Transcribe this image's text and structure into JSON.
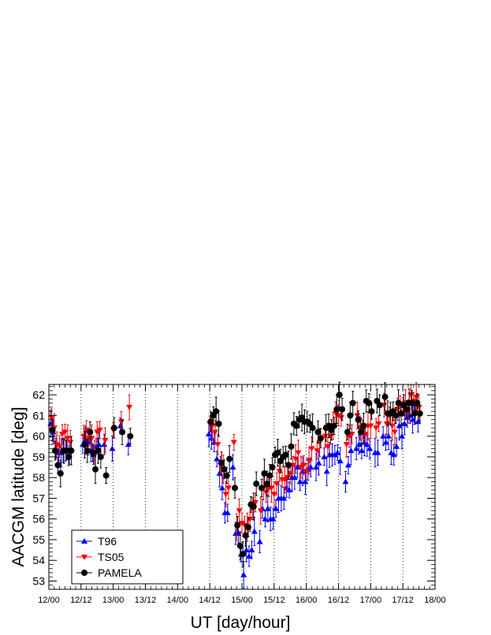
{
  "chart_data": {
    "type": "scatter",
    "xlabel": "UT [day/hour]",
    "ylabel": "AACGM latitude [deg]",
    "xlim": [
      0,
      144
    ],
    "ylim": [
      52.6,
      62.5
    ],
    "x_tick_labels": [
      "12/00",
      "12/12",
      "13/00",
      "13/12",
      "14/00",
      "14/12",
      "15/00",
      "15/12",
      "16/00",
      "16/12",
      "17/00",
      "17/12",
      "18/00"
    ],
    "x_tick_values": [
      0,
      12,
      24,
      36,
      48,
      60,
      72,
      84,
      96,
      108,
      120,
      132,
      144
    ],
    "y_tick_values": [
      53,
      54,
      55,
      56,
      57,
      58,
      59,
      60,
      61,
      62
    ],
    "grid_vertical_dotted": true,
    "legend_position": "bottom-left",
    "series": [
      {
        "name": "T96",
        "color": "#0000ff",
        "marker": "triangle-up",
        "points": [
          [
            1,
            60.6
          ],
          [
            2,
            60.2
          ],
          [
            3,
            59.4
          ],
          [
            4,
            59.2
          ],
          [
            5,
            59.2
          ],
          [
            6,
            59.3
          ],
          [
            7,
            59.4
          ],
          [
            8,
            59.1
          ],
          [
            13,
            59.6
          ],
          [
            14,
            59.8
          ],
          [
            15,
            59.7
          ],
          [
            16,
            59.3
          ],
          [
            17,
            59.1
          ],
          [
            18,
            59.5
          ],
          [
            19,
            59.6
          ],
          [
            21,
            59.6
          ],
          [
            24,
            59.4
          ],
          [
            27,
            60.5
          ],
          [
            30,
            59.6
          ],
          [
            60,
            60.1
          ],
          [
            61,
            59.9
          ],
          [
            62,
            59.7
          ],
          [
            63,
            58.9
          ],
          [
            64,
            58.2
          ],
          [
            65,
            57.5
          ],
          [
            66,
            56.3
          ],
          [
            67,
            56.3
          ],
          [
            69,
            58.5
          ],
          [
            70,
            55.3
          ],
          [
            71,
            55.3
          ],
          [
            72,
            54.3
          ],
          [
            73,
            53.3
          ],
          [
            74,
            54.5
          ],
          [
            75,
            54.2
          ],
          [
            76,
            54.5
          ],
          [
            77,
            55.4
          ],
          [
            79,
            54.9
          ],
          [
            80,
            56.5
          ],
          [
            81,
            56.0
          ],
          [
            82,
            56.5
          ],
          [
            83,
            56.0
          ],
          [
            84,
            56.0
          ],
          [
            85,
            56.5
          ],
          [
            86,
            57.0
          ],
          [
            87,
            57.0
          ],
          [
            88,
            57.0
          ],
          [
            89,
            57.5
          ],
          [
            90,
            57.4
          ],
          [
            91,
            58.0
          ],
          [
            92,
            58.0
          ],
          [
            93,
            58.5
          ],
          [
            94,
            57.8
          ],
          [
            95,
            58.3
          ],
          [
            96,
            57.8
          ],
          [
            97,
            58.4
          ],
          [
            98,
            58.5
          ],
          [
            100,
            58.5
          ],
          [
            101,
            58.7
          ],
          [
            103,
            59.0
          ],
          [
            104,
            58.3
          ],
          [
            105,
            59.1
          ],
          [
            106,
            59.1
          ],
          [
            107,
            59.1
          ],
          [
            108,
            59.2
          ],
          [
            109,
            58.8
          ],
          [
            111,
            57.8
          ],
          [
            112,
            58.6
          ],
          [
            113,
            59.3
          ],
          [
            115,
            59.4
          ],
          [
            116,
            59.6
          ],
          [
            117,
            59.3
          ],
          [
            118,
            59.7
          ],
          [
            119,
            59.6
          ],
          [
            120,
            59.4
          ],
          [
            122,
            59.2
          ],
          [
            123,
            59.2
          ],
          [
            125,
            60.0
          ],
          [
            126,
            59.7
          ],
          [
            127,
            60.0
          ],
          [
            128,
            59.2
          ],
          [
            129,
            59.1
          ],
          [
            130,
            59.5
          ],
          [
            131,
            60.5
          ],
          [
            132,
            60.0
          ],
          [
            133,
            60.6
          ],
          [
            134,
            60.9
          ],
          [
            135,
            61.0
          ],
          [
            136,
            60.8
          ],
          [
            137,
            61.2
          ],
          [
            138,
            60.7
          ]
        ]
      },
      {
        "name": "TS05",
        "color": "#ff0000",
        "marker": "triangle-down",
        "points": [
          [
            1,
            60.9
          ],
          [
            2,
            60.4
          ],
          [
            3,
            59.6
          ],
          [
            4,
            59.5
          ],
          [
            5,
            60.1
          ],
          [
            6,
            60.2
          ],
          [
            7,
            59.9
          ],
          [
            8,
            59.7
          ],
          [
            13,
            60.0
          ],
          [
            14,
            60.3
          ],
          [
            15,
            59.9
          ],
          [
            16,
            59.9
          ],
          [
            17,
            59.2
          ],
          [
            18,
            60.2
          ],
          [
            19,
            60.3
          ],
          [
            21,
            59.8
          ],
          [
            24,
            60.3
          ],
          [
            27,
            60.7
          ],
          [
            30,
            61.4
          ],
          [
            60,
            60.6
          ],
          [
            61,
            60.5
          ],
          [
            62,
            60.2
          ],
          [
            63,
            59.6
          ],
          [
            64,
            58.6
          ],
          [
            65,
            58.4
          ],
          [
            66,
            57.2
          ],
          [
            67,
            57.5
          ],
          [
            69,
            59.7
          ],
          [
            70,
            55.6
          ],
          [
            71,
            56.4
          ],
          [
            72,
            55.8
          ],
          [
            73,
            55.7
          ],
          [
            74,
            55.6
          ],
          [
            75,
            56.0
          ],
          [
            76,
            56.5
          ],
          [
            77,
            56.8
          ],
          [
            79,
            56.4
          ],
          [
            80,
            57.5
          ],
          [
            81,
            57.3
          ],
          [
            82,
            57.5
          ],
          [
            83,
            57.5
          ],
          [
            84,
            57.2
          ],
          [
            85,
            57.7
          ],
          [
            86,
            58.3
          ],
          [
            87,
            57.9
          ],
          [
            88,
            57.9
          ],
          [
            89,
            58.0
          ],
          [
            90,
            58.2
          ],
          [
            91,
            58.6
          ],
          [
            92,
            58.9
          ],
          [
            93,
            59.2
          ],
          [
            94,
            58.5
          ],
          [
            95,
            58.6
          ],
          [
            96,
            58.3
          ],
          [
            97,
            58.8
          ],
          [
            98,
            59.4
          ],
          [
            100,
            59.3
          ],
          [
            101,
            59.7
          ],
          [
            103,
            60.0
          ],
          [
            104,
            59.5
          ],
          [
            105,
            60.0
          ],
          [
            106,
            60.5
          ],
          [
            107,
            61.1
          ],
          [
            108,
            61.0
          ],
          [
            109,
            60.9
          ],
          [
            111,
            59.6
          ],
          [
            112,
            60.0
          ],
          [
            113,
            60.1
          ],
          [
            115,
            61.0
          ],
          [
            116,
            60.4
          ],
          [
            117,
            60.3
          ],
          [
            118,
            60.1
          ],
          [
            119,
            60.5
          ],
          [
            120,
            60.5
          ],
          [
            122,
            60.4
          ],
          [
            123,
            60.6
          ],
          [
            125,
            61.5
          ],
          [
            126,
            60.6
          ],
          [
            127,
            61.0
          ],
          [
            128,
            60.5
          ],
          [
            129,
            60.2
          ],
          [
            130,
            61.3
          ],
          [
            131,
            61.5
          ],
          [
            132,
            61.5
          ],
          [
            133,
            61.6
          ],
          [
            134,
            61.2
          ],
          [
            135,
            62.0
          ],
          [
            136,
            61.7
          ],
          [
            137,
            61.9
          ],
          [
            138,
            61.4
          ]
        ]
      },
      {
        "name": "PAMELA",
        "color": "#000000",
        "marker": "circle",
        "points": [
          [
            1,
            60.3
          ],
          [
            2,
            59.3
          ],
          [
            3,
            58.6
          ],
          [
            4,
            58.2
          ],
          [
            5,
            59.3
          ],
          [
            6,
            59.3
          ],
          [
            7,
            59.0
          ],
          [
            8,
            59.3
          ],
          [
            13,
            59.6
          ],
          [
            14,
            59.3
          ],
          [
            15,
            60.2
          ],
          [
            16,
            59.2
          ],
          [
            17,
            58.4
          ],
          [
            18,
            59.3
          ],
          [
            19,
            59.0
          ],
          [
            21,
            58.1
          ],
          [
            24,
            60.4
          ],
          [
            27,
            60.2
          ],
          [
            30,
            60.0
          ],
          [
            60,
            60.7
          ],
          [
            61,
            61.0
          ],
          [
            62,
            61.2
          ],
          [
            63,
            60.6
          ],
          [
            64,
            58.7
          ],
          [
            65,
            58.4
          ],
          [
            66,
            58.1
          ],
          [
            67,
            58.9
          ],
          [
            69,
            57.5
          ],
          [
            70,
            55.7
          ],
          [
            71,
            54.7
          ],
          [
            72,
            54.3
          ],
          [
            73,
            55.2
          ],
          [
            74,
            55.6
          ],
          [
            75,
            56.7
          ],
          [
            76,
            56.6
          ],
          [
            77,
            57.7
          ],
          [
            79,
            57.5
          ],
          [
            80,
            58.2
          ],
          [
            81,
            57.7
          ],
          [
            82,
            58.1
          ],
          [
            83,
            58.5
          ],
          [
            84,
            59.1
          ],
          [
            85,
            59.2
          ],
          [
            86,
            58.8
          ],
          [
            87,
            59.0
          ],
          [
            88,
            59.1
          ],
          [
            89,
            58.6
          ],
          [
            90,
            59.5
          ],
          [
            91,
            60.6
          ],
          [
            92,
            60.5
          ],
          [
            93,
            60.8
          ],
          [
            94,
            60.9
          ],
          [
            95,
            60.7
          ],
          [
            96,
            60.7
          ],
          [
            97,
            60.6
          ],
          [
            98,
            60.4
          ],
          [
            100,
            60.2
          ],
          [
            101,
            59.9
          ],
          [
            103,
            60.4
          ],
          [
            104,
            60.5
          ],
          [
            105,
            60.3
          ],
          [
            106,
            60.5
          ],
          [
            107,
            61.3
          ],
          [
            108,
            62.0
          ],
          [
            109,
            61.3
          ],
          [
            111,
            60.2
          ],
          [
            112,
            61.0
          ],
          [
            113,
            61.6
          ],
          [
            115,
            60.8
          ],
          [
            116,
            60.2
          ],
          [
            117,
            60.5
          ],
          [
            118,
            61.7
          ],
          [
            119,
            61.6
          ],
          [
            120,
            61.2
          ],
          [
            122,
            61.7
          ],
          [
            123,
            61.5
          ],
          [
            125,
            61.9
          ],
          [
            126,
            61.1
          ],
          [
            127,
            61.1
          ],
          [
            128,
            61.2
          ],
          [
            129,
            61.0
          ],
          [
            130,
            61.6
          ],
          [
            131,
            61.1
          ],
          [
            132,
            61.5
          ],
          [
            133,
            61.3
          ],
          [
            134,
            61.6
          ],
          [
            135,
            61.6
          ],
          [
            136,
            61.1
          ],
          [
            137,
            61.6
          ],
          [
            138,
            61.1
          ]
        ]
      }
    ]
  }
}
